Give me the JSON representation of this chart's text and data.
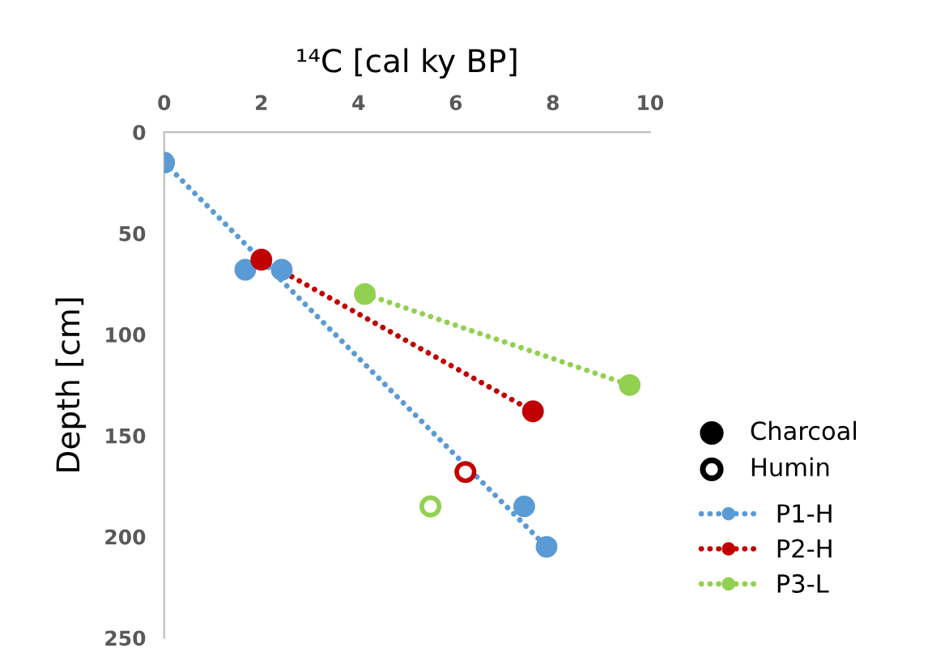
{
  "chart_data": {
    "type": "scatter",
    "xlabel": "¹⁴C [cal ky BP]",
    "ylabel": "Depth [cm]",
    "xlim": [
      0,
      10
    ],
    "xticks": [
      0,
      2,
      4,
      6,
      8,
      10
    ],
    "ylim": [
      250,
      0
    ],
    "yticks": [
      0,
      50,
      100,
      150,
      200,
      250
    ],
    "grid": false,
    "legend": "right",
    "marker": "circle",
    "annotations": [
      "Charcoal",
      "Humin"
    ],
    "series": [
      {
        "x": [
          1.67,
          2.42,
          7.41
        ],
        "values": [
          68,
          68,
          185
        ],
        "colors": [
          "#5b9bd5",
          "#5b9bd5",
          "#5b9bd5"
        ]
      },
      {
        "type": "scatter",
        "color": "#ffffff",
        "x": [
          6.2,
          5.48
        ],
        "values": [
          168,
          185
        ],
        "colors": [
          "#c00000",
          "#92d050"
        ]
      },
      {
        "name": "P1-H",
        "type": "line",
        "line_style": "dotted",
        "color": "#5b9bd5",
        "x": [
          0,
          7.87
        ],
        "values": [
          15,
          205
        ]
      },
      {
        "name": "P2-H",
        "type": "line",
        "line_style": "dotted",
        "color": "#c00000",
        "x": [
          2.0,
          7.59
        ],
        "values": [
          63,
          138
        ]
      },
      {
        "name": "P3-L",
        "type": "line",
        "line_style": "dotted",
        "color": "#92d050",
        "x": [
          4.13,
          9.58
        ],
        "values": [
          80,
          125
        ]
      }
    ]
  }
}
